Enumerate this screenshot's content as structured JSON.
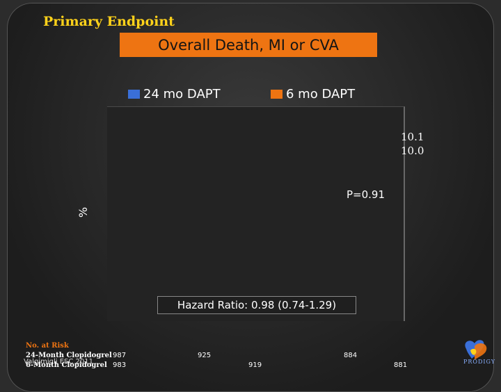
{
  "slide": {
    "section_title": "Primary Endpoint",
    "banner": "Overall Death, MI or CVA",
    "footnote": "Valgimigli ESC 2011",
    "logo_text": "PRODIGY"
  },
  "chart_data": {
    "type": "line",
    "title": "",
    "xlabel": "",
    "ylabel": "%",
    "series": [
      {
        "name": "24 mo DAPT",
        "color": "#3a6fd8",
        "final_value_label": "10.1"
      },
      {
        "name": "6 mo DAPT",
        "color": "#ee7412",
        "final_value_label": "10.0"
      }
    ],
    "annotations": {
      "p_value": "P=0.91",
      "hazard_ratio": "Hazard Ratio: 0.98 (0.74-1.29)"
    },
    "legend": "top",
    "grid": false
  },
  "risk_table": {
    "title": "No. at Risk",
    "rows": [
      {
        "label": "24-Month Clopidogrel",
        "values": [
          "987",
          "925",
          "884"
        ]
      },
      {
        "label": "6-Month Clopidogrel",
        "values": [
          "983",
          "919",
          "881"
        ]
      }
    ]
  }
}
